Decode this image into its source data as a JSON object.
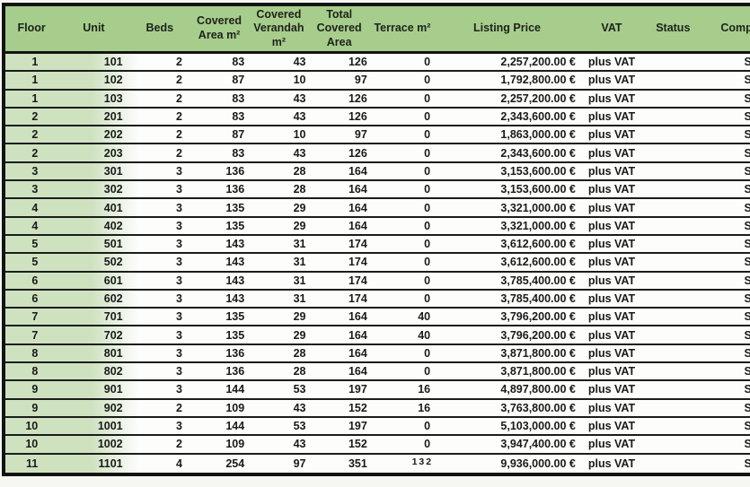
{
  "table": {
    "headers": {
      "floor": "Floor",
      "unit": "Unit",
      "beds": "Beds",
      "covered": "Covered Area m²",
      "verandah": "Covered Verandah m²",
      "total": "Total Covered Area",
      "terrace": "Terrace m²",
      "price": "Listing Price",
      "vat": "VAT",
      "status": "Status",
      "completion": "Completion"
    },
    "rows": [
      {
        "floor": "1",
        "unit": "101",
        "beds": "2",
        "covered": "83",
        "verandah": "43",
        "total": "126",
        "terrace": "0",
        "price": "2,257,200.00 €",
        "vat": "plus VAT",
        "status": "",
        "completion": "S"
      },
      {
        "floor": "1",
        "unit": "102",
        "beds": "2",
        "covered": "87",
        "verandah": "10",
        "total": "97",
        "terrace": "0",
        "price": "1,792,800.00 €",
        "vat": "plus VAT",
        "status": "",
        "completion": "S"
      },
      {
        "floor": "1",
        "unit": "103",
        "beds": "2",
        "covered": "83",
        "verandah": "43",
        "total": "126",
        "terrace": "0",
        "price": "2,257,200.00 €",
        "vat": "plus VAT",
        "status": "",
        "completion": "S"
      },
      {
        "floor": "2",
        "unit": "201",
        "beds": "2",
        "covered": "83",
        "verandah": "43",
        "total": "126",
        "terrace": "0",
        "price": "2,343,600.00 €",
        "vat": "plus VAT",
        "status": "",
        "completion": "S"
      },
      {
        "floor": "2",
        "unit": "202",
        "beds": "2",
        "covered": "87",
        "verandah": "10",
        "total": "97",
        "terrace": "0",
        "price": "1,863,000.00 €",
        "vat": "plus VAT",
        "status": "",
        "completion": "S"
      },
      {
        "floor": "2",
        "unit": "203",
        "beds": "2",
        "covered": "83",
        "verandah": "43",
        "total": "126",
        "terrace": "0",
        "price": "2,343,600.00 €",
        "vat": "plus VAT",
        "status": "",
        "completion": "S"
      },
      {
        "floor": "3",
        "unit": "301",
        "beds": "3",
        "covered": "136",
        "verandah": "28",
        "total": "164",
        "terrace": "0",
        "price": "3,153,600.00 €",
        "vat": "plus VAT",
        "status": "",
        "completion": "S"
      },
      {
        "floor": "3",
        "unit": "302",
        "beds": "3",
        "covered": "136",
        "verandah": "28",
        "total": "164",
        "terrace": "0",
        "price": "3,153,600.00 €",
        "vat": "plus VAT",
        "status": "",
        "completion": "S"
      },
      {
        "floor": "4",
        "unit": "401",
        "beds": "3",
        "covered": "135",
        "verandah": "29",
        "total": "164",
        "terrace": "0",
        "price": "3,321,000.00 €",
        "vat": "plus VAT",
        "status": "",
        "completion": "S"
      },
      {
        "floor": "4",
        "unit": "402",
        "beds": "3",
        "covered": "135",
        "verandah": "29",
        "total": "164",
        "terrace": "0",
        "price": "3,321,000.00 €",
        "vat": "plus VAT",
        "status": "",
        "completion": "S"
      },
      {
        "floor": "5",
        "unit": "501",
        "beds": "3",
        "covered": "143",
        "verandah": "31",
        "total": "174",
        "terrace": "0",
        "price": "3,612,600.00 €",
        "vat": "plus VAT",
        "status": "",
        "completion": "S"
      },
      {
        "floor": "5",
        "unit": "502",
        "beds": "3",
        "covered": "143",
        "verandah": "31",
        "total": "174",
        "terrace": "0",
        "price": "3,612,600.00 €",
        "vat": "plus VAT",
        "status": "",
        "completion": "S"
      },
      {
        "floor": "6",
        "unit": "601",
        "beds": "3",
        "covered": "143",
        "verandah": "31",
        "total": "174",
        "terrace": "0",
        "price": "3,785,400.00 €",
        "vat": "plus VAT",
        "status": "",
        "completion": "S"
      },
      {
        "floor": "6",
        "unit": "602",
        "beds": "3",
        "covered": "143",
        "verandah": "31",
        "total": "174",
        "terrace": "0",
        "price": "3,785,400.00 €",
        "vat": "plus VAT",
        "status": "",
        "completion": "S"
      },
      {
        "floor": "7",
        "unit": "701",
        "beds": "3",
        "covered": "135",
        "verandah": "29",
        "total": "164",
        "terrace": "40",
        "price": "3,796,200.00 €",
        "vat": "plus VAT",
        "status": "",
        "completion": "S"
      },
      {
        "floor": "7",
        "unit": "702",
        "beds": "3",
        "covered": "135",
        "verandah": "29",
        "total": "164",
        "terrace": "40",
        "price": "3,796,200.00 €",
        "vat": "plus VAT",
        "status": "",
        "completion": "S"
      },
      {
        "floor": "8",
        "unit": "801",
        "beds": "3",
        "covered": "136",
        "verandah": "28",
        "total": "164",
        "terrace": "0",
        "price": "3,871,800.00 €",
        "vat": "plus VAT",
        "status": "",
        "completion": "S"
      },
      {
        "floor": "8",
        "unit": "802",
        "beds": "3",
        "covered": "136",
        "verandah": "28",
        "total": "164",
        "terrace": "0",
        "price": "3,871,800.00 €",
        "vat": "plus VAT",
        "status": "",
        "completion": "S"
      },
      {
        "floor": "9",
        "unit": "901",
        "beds": "3",
        "covered": "144",
        "verandah": "53",
        "total": "197",
        "terrace": "16",
        "price": "4,897,800.00 €",
        "vat": "plus VAT",
        "status": "",
        "completion": "S"
      },
      {
        "floor": "9",
        "unit": "902",
        "beds": "2",
        "covered": "109",
        "verandah": "43",
        "total": "152",
        "terrace": "16",
        "price": "3,763,800.00 €",
        "vat": "plus VAT",
        "status": "",
        "completion": "S"
      },
      {
        "floor": "10",
        "unit": "1001",
        "beds": "3",
        "covered": "144",
        "verandah": "53",
        "total": "197",
        "terrace": "0",
        "price": "5,103,000.00 €",
        "vat": "plus VAT",
        "status": "",
        "completion": "S"
      },
      {
        "floor": "10",
        "unit": "1002",
        "beds": "2",
        "covered": "109",
        "verandah": "43",
        "total": "152",
        "terrace": "0",
        "price": "3,947,400.00 €",
        "vat": "plus VAT",
        "status": "",
        "completion": "S"
      },
      {
        "floor": "11",
        "unit": "1101",
        "beds": "4",
        "covered": "254",
        "verandah": "97",
        "total": "351",
        "terrace": "132",
        "price": "9,936,000.00 €",
        "vat": "plus VAT",
        "status": "",
        "completion": "S"
      }
    ]
  },
  "colors": {
    "header_green": "#a7cd8c",
    "row_green": "#cfe2c0",
    "border": "#131313"
  }
}
